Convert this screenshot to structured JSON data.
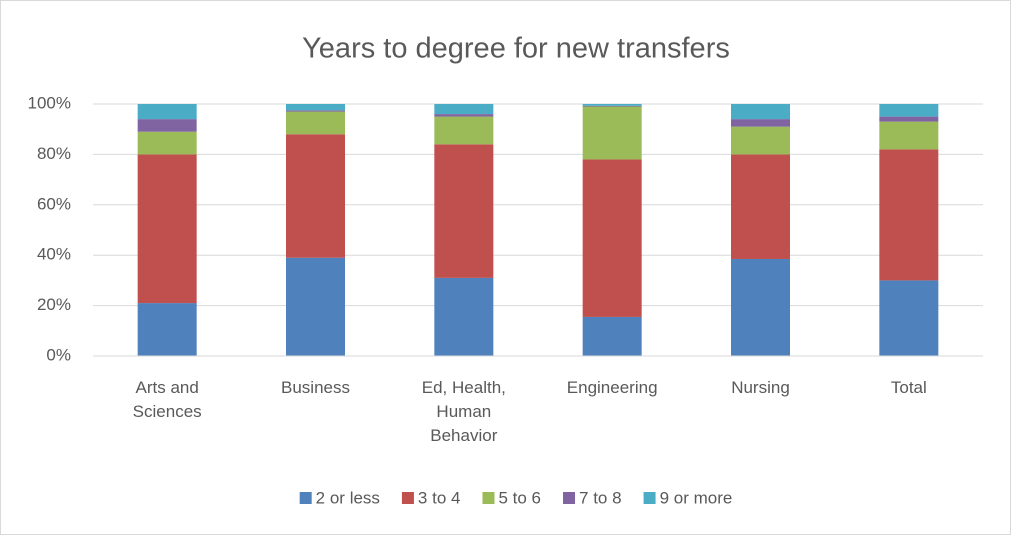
{
  "chart_data": {
    "type": "stacked_bar",
    "title": "Years to degree for new transfers",
    "categories": [
      "Arts and Sciences",
      "Business",
      "Ed, Health, Human Behavior",
      "Engineering",
      "Nursing",
      "Total"
    ],
    "series": [
      {
        "name": "2 or less",
        "color": "#4f81bd",
        "values": [
          21,
          39,
          31,
          15.5,
          38.5,
          30
        ]
      },
      {
        "name": "3 to 4",
        "color": "#c0504d",
        "values": [
          59,
          49,
          53,
          62.5,
          41.5,
          52
        ]
      },
      {
        "name": "5 to 6",
        "color": "#9bbb59",
        "values": [
          9,
          9,
          11,
          21,
          11,
          11
        ]
      },
      {
        "name": "7 to 8",
        "color": "#8064a2",
        "values": [
          5,
          0.5,
          1,
          0.3,
          3,
          2
        ]
      },
      {
        "name": "9 or more",
        "color": "#4bacc6",
        "values": [
          6,
          2.5,
          4,
          0.7,
          6,
          5
        ]
      }
    ],
    "ylim": [
      0,
      100
    ],
    "yticks": [
      {
        "value": 0,
        "label": "0%"
      },
      {
        "value": 20,
        "label": "20%"
      },
      {
        "value": 40,
        "label": "40%"
      },
      {
        "value": 60,
        "label": "60%"
      },
      {
        "value": 80,
        "label": "80%"
      },
      {
        "value": 100,
        "label": "100%"
      }
    ],
    "grid": true,
    "legend": "bottom"
  }
}
